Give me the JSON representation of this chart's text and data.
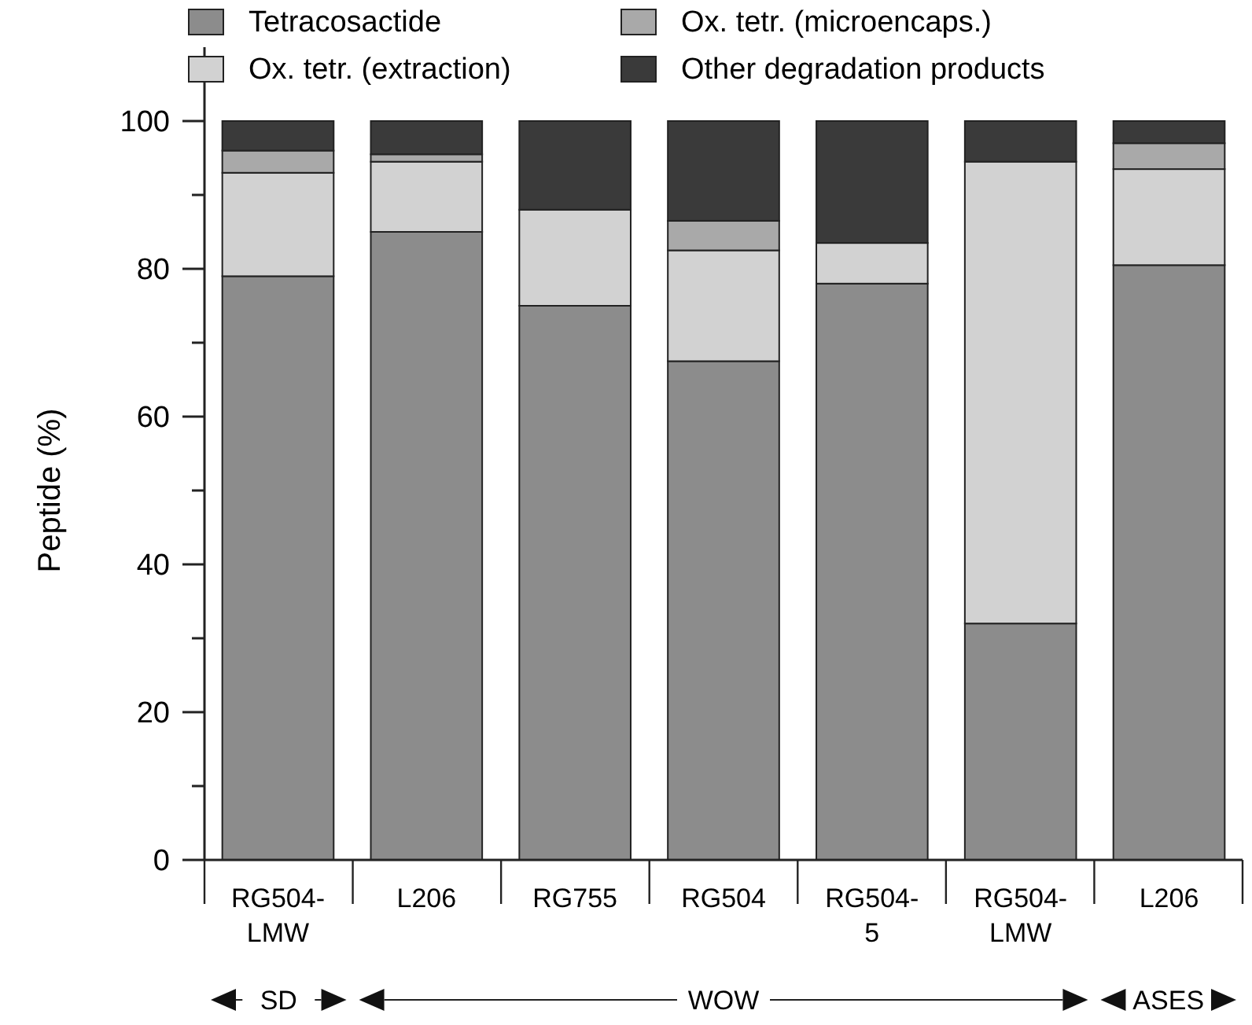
{
  "chart_data": {
    "type": "bar",
    "stacked": true,
    "ylabel": "Peptide (%)",
    "categories": [
      "RG504-LMW",
      "L206",
      "RG755",
      "RG504",
      "RG504-5",
      "RG504-LMW",
      "L206"
    ],
    "series": [
      {
        "name": "Tetracosactide",
        "color": "#8c8c8c",
        "values": [
          79,
          85,
          75,
          67.5,
          78,
          32,
          80.5
        ]
      },
      {
        "name": "Ox. tetr. (extraction)",
        "color": "#d2d2d2",
        "values": [
          14,
          9.5,
          13,
          15,
          5.5,
          62.5,
          13
        ]
      },
      {
        "name": "Ox. tetr. (microencaps.)",
        "color": "#a9a9a9",
        "values": [
          3,
          1,
          0,
          4,
          0,
          0,
          3.5
        ]
      },
      {
        "name": "Other degradation products",
        "color": "#3a3a3a",
        "values": [
          4,
          4.5,
          12,
          13.5,
          16.5,
          5.5,
          3
        ]
      }
    ],
    "ylim": [
      0,
      110
    ],
    "yticks": [
      0,
      {
        "value": 10,
        "label": null
      },
      20,
      {
        "value": 30,
        "label": null
      },
      40,
      {
        "value": 50,
        "label": null
      },
      60,
      {
        "value": 70,
        "label": null
      },
      80,
      {
        "value": 90,
        "label": null
      },
      100
    ],
    "legend": "top",
    "annotations": [
      "SD",
      "WOW",
      "ASES"
    ]
  }
}
